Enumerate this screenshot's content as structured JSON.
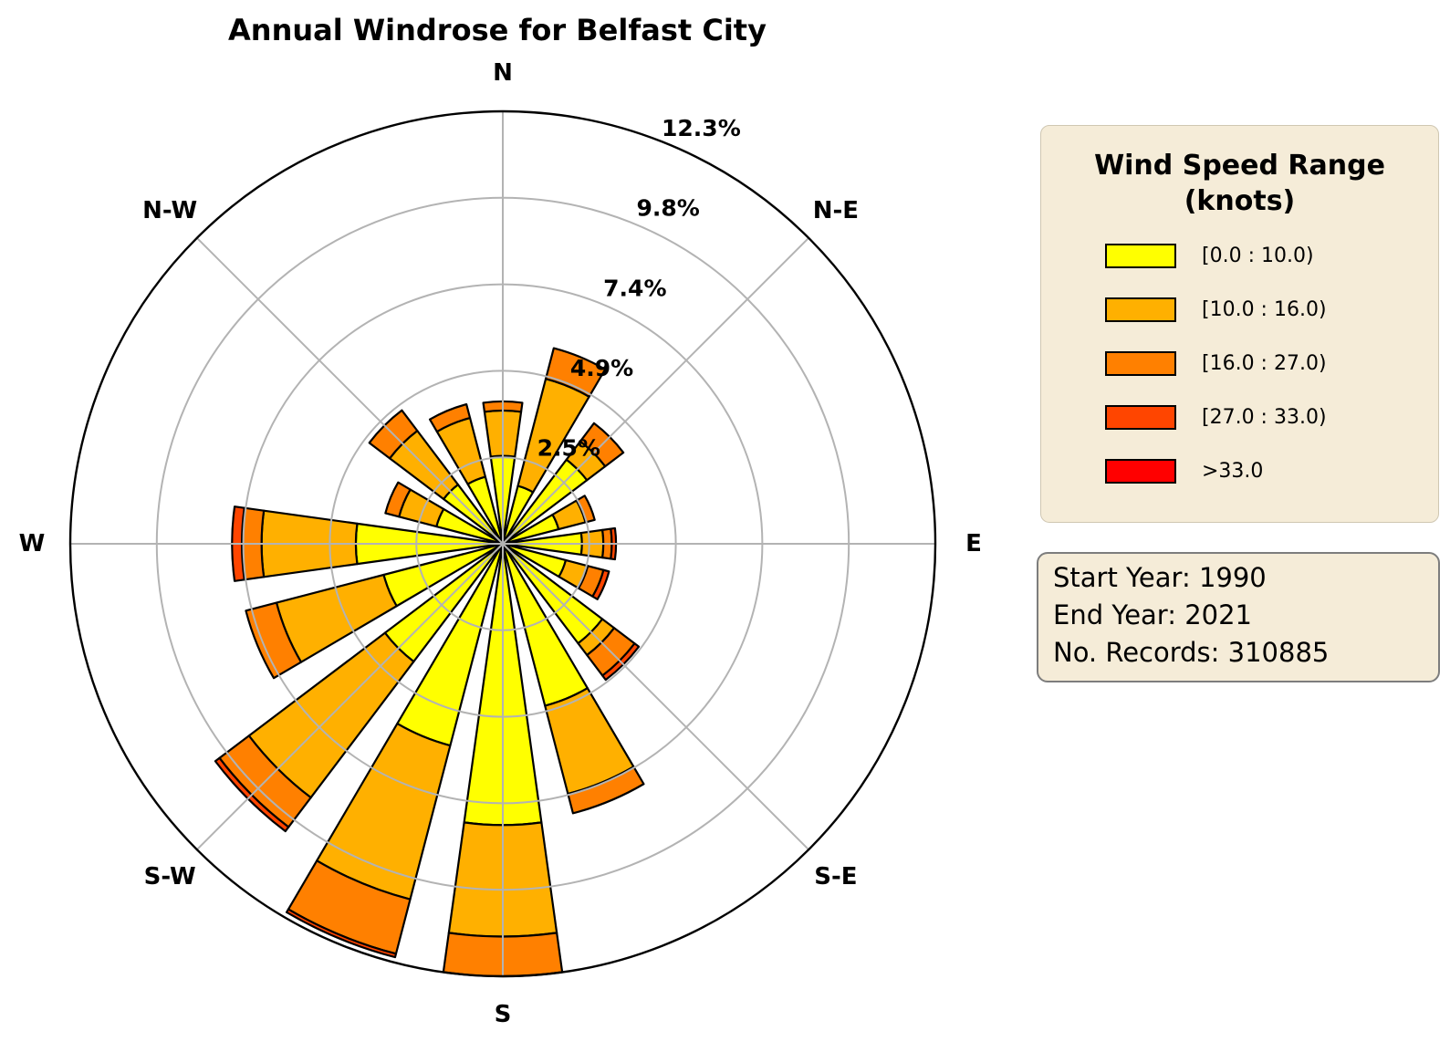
{
  "chart_data": {
    "type": "bar",
    "subtype": "windrose-polar-stacked-bar",
    "title": "Annual Windrose for Belfast City",
    "units": "percent of records",
    "rmax": 12.3,
    "grid": true,
    "radial_ticks": [
      2.46,
      4.92,
      7.38,
      9.84,
      12.3
    ],
    "radial_tick_labels": [
      "2.5%",
      "4.9%",
      "7.4%",
      "9.8%",
      "12.3%"
    ],
    "radial_label_angle_deg": 22.5,
    "compass_labels": [
      {
        "label": "N",
        "angle": 0
      },
      {
        "label": "N-E",
        "angle": 45
      },
      {
        "label": "E",
        "angle": 90
      },
      {
        "label": "S-E",
        "angle": 135
      },
      {
        "label": "S",
        "angle": 180
      },
      {
        "label": "S-W",
        "angle": 225
      },
      {
        "label": "W",
        "angle": 270
      },
      {
        "label": "N-W",
        "angle": 315
      }
    ],
    "speed_bins": [
      {
        "label": "[0.0 : 10.0)",
        "color": "#ffff00"
      },
      {
        "label": "[10.0 : 16.0)",
        "color": "#ffb000"
      },
      {
        "label": "[16.0 : 27.0)",
        "color": "#ff8000"
      },
      {
        "label": "[27.0 : 33.0)",
        "color": "#ff4500"
      },
      {
        "label": ">33.0",
        "color": "#ff0000"
      }
    ],
    "series": [
      {
        "dir": "N",
        "angle": 0.0,
        "values": [
          2.5,
          1.29,
          0.26,
          0.0,
          0
        ]
      },
      {
        "dir": "NNE",
        "angle": 22.5,
        "values": [
          1.7,
          3.15,
          0.9,
          0.0,
          0
        ]
      },
      {
        "dir": "NE",
        "angle": 45.0,
        "values": [
          3.0,
          0.65,
          0.65,
          0.0,
          0
        ]
      },
      {
        "dir": "ENE",
        "angle": 67.5,
        "values": [
          1.64,
          0.79,
          0.27,
          0.0,
          0
        ]
      },
      {
        "dir": "E",
        "angle": 90.0,
        "values": [
          2.25,
          0.61,
          0.24,
          0.12,
          0
        ]
      },
      {
        "dir": "ESE",
        "angle": 112.5,
        "values": [
          1.85,
          0.65,
          0.46,
          0.16,
          0
        ]
      },
      {
        "dir": "SE",
        "angle": 135.0,
        "values": [
          3.55,
          0.42,
          0.73,
          0.15,
          0
        ]
      },
      {
        "dir": "SSE",
        "angle": 157.5,
        "values": [
          4.76,
          2.59,
          0.57,
          0.0,
          0
        ]
      },
      {
        "dir": "S",
        "angle": 180.0,
        "values": [
          8.0,
          3.17,
          1.13,
          0.0,
          0
        ]
      },
      {
        "dir": "SSW",
        "angle": 202.5,
        "values": [
          5.93,
          4.52,
          1.6,
          0.1,
          0
        ]
      },
      {
        "dir": "SW",
        "angle": 225.0,
        "values": [
          4.2,
          4.85,
          1.05,
          0.15,
          0
        ]
      },
      {
        "dir": "WSW",
        "angle": 247.5,
        "values": [
          3.5,
          3.15,
          0.9,
          0.0,
          0
        ]
      },
      {
        "dir": "W",
        "angle": 270.0,
        "values": [
          4.18,
          2.68,
          0.56,
          0.28,
          0
        ]
      },
      {
        "dir": "WNW",
        "angle": 292.5,
        "values": [
          1.95,
          1.1,
          0.4,
          0.0,
          0
        ]
      },
      {
        "dir": "NW",
        "angle": 315.0,
        "values": [
          2.11,
          1.92,
          0.73,
          0.0,
          0
        ]
      },
      {
        "dir": "NNW",
        "angle": 337.5,
        "values": [
          1.97,
          1.73,
          0.4,
          0.0,
          0
        ]
      }
    ],
    "style": {
      "grid_color": "#b3b3b3",
      "outer_circle_color": "#000000",
      "bar_edge_color": "#000000",
      "bar_width_deg": 15.8
    }
  },
  "legend": {
    "title": "Wind Speed Range\n(knots)"
  },
  "info_box": {
    "lines": [
      "Start Year: 1990",
      "End Year: 2021",
      "No. Records: 310885"
    ]
  }
}
